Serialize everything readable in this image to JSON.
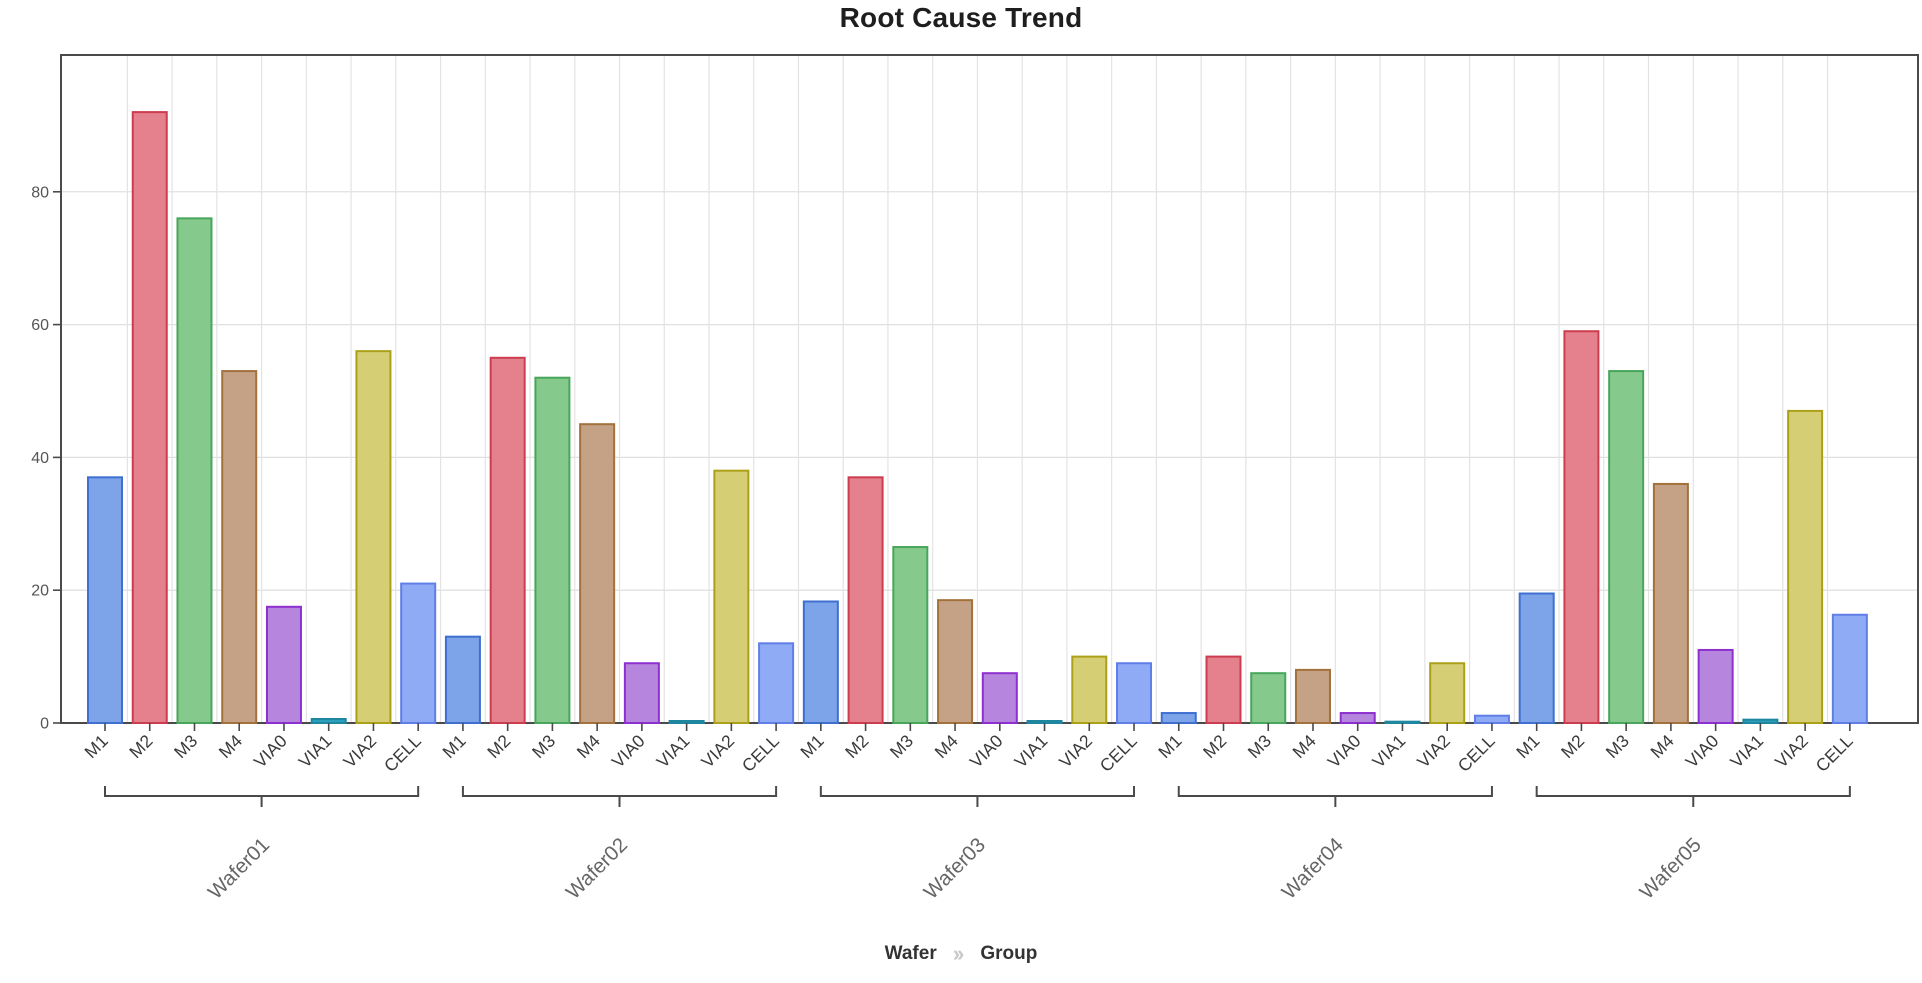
{
  "title": "Root Cause Trend",
  "footer": {
    "level1": "Wafer",
    "separator": "››",
    "level2": "Group"
  },
  "chart_data": {
    "type": "bar",
    "title": "Root Cause Trend",
    "hierarchy": [
      "Wafer",
      "Group"
    ],
    "categories": [
      "M1",
      "M2",
      "M3",
      "M4",
      "VIA0",
      "VIA1",
      "VIA2",
      "CELL"
    ],
    "groups": [
      {
        "name": "Wafer01",
        "values": [
          37,
          92,
          76,
          53,
          17.5,
          0.6,
          56,
          21
        ]
      },
      {
        "name": "Wafer02",
        "values": [
          13,
          55,
          52,
          45,
          9,
          0.3,
          38,
          12
        ]
      },
      {
        "name": "Wafer03",
        "values": [
          18.3,
          37,
          26.5,
          18.5,
          7.5,
          0.3,
          10,
          9
        ]
      },
      {
        "name": "Wafer04",
        "values": [
          1.5,
          10,
          7.5,
          8,
          1.5,
          0.2,
          9,
          1.1
        ]
      },
      {
        "name": "Wafer05",
        "values": [
          19.5,
          59,
          53,
          36,
          11,
          0.5,
          47,
          16.3
        ]
      }
    ],
    "ylim": [
      0,
      100.6
    ],
    "yticks": [
      0,
      20,
      40,
      60,
      80
    ],
    "xlabel": "",
    "ylabel": "",
    "grid": true,
    "legend": false,
    "colors": {
      "M1": {
        "fill": "#7da4e8",
        "stroke": "#3f6fd1"
      },
      "M2": {
        "fill": "#e5808d",
        "stroke": "#cc3d4f"
      },
      "M3": {
        "fill": "#86c98d",
        "stroke": "#48a65a"
      },
      "M4": {
        "fill": "#c5a285",
        "stroke": "#a3713b"
      },
      "VIA0": {
        "fill": "#b685dd",
        "stroke": "#8e2fd0"
      },
      "VIA1": {
        "fill": "#2ba1be",
        "stroke": "#1f86a0"
      },
      "VIA2": {
        "fill": "#d6ce75",
        "stroke": "#aca019"
      },
      "CELL": {
        "fill": "#90abf5",
        "stroke": "#607ee8"
      }
    },
    "style": {
      "axis_color": "#4a4a4a",
      "hgrid_color": "#e0e0e0",
      "vgrid_color": "#e3e3e3",
      "ytick_label_color": "#555555",
      "xtick_label_color": "#3a3a3a",
      "group_label_color": "#666666"
    }
  }
}
